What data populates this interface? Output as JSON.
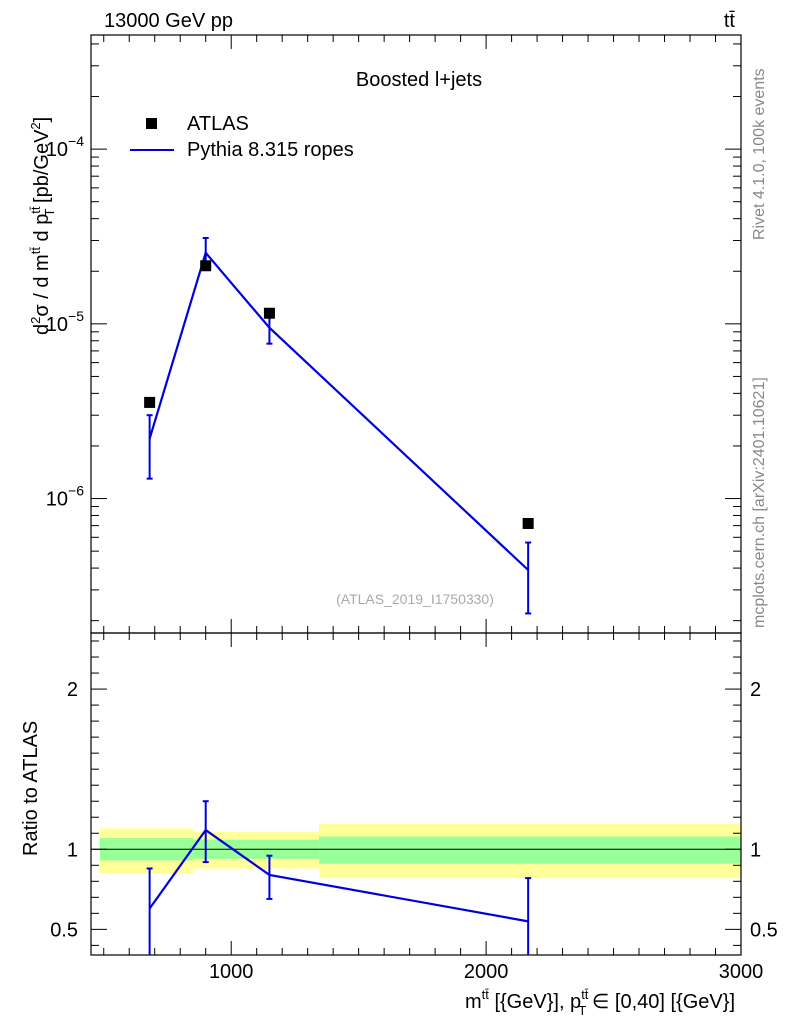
{
  "header": {
    "left": "13000 GeV pp",
    "right": "tt̄"
  },
  "side_text": {
    "rivet": "Rivet 4.1.0,  100k events",
    "mcplots": "mcplots.cern.ch [arXiv:2401.10621]"
  },
  "colors": {
    "mc": "#0000dd",
    "data": "#000000",
    "band_inner": "#99ff99",
    "band_outer": "#ffff99"
  },
  "chart_data": [
    {
      "type": "scatter",
      "title": "Boosted l+jets",
      "ylabel": "d²σ / d m^tt̄ d p_T^tt̄ [pb/GeV²]",
      "watermark": "(ATLAS_2019_I1750330)",
      "yscale": "log",
      "ylim": [
        1.7e-07,
        0.00045
      ],
      "xlim": [
        450,
        3000
      ],
      "y_ticks": [
        {
          "value": 1e-06,
          "base": "10",
          "exp": "−6"
        },
        {
          "value": 1e-05,
          "base": "10",
          "exp": "−5"
        },
        {
          "value": 0.0001,
          "base": "10",
          "exp": "−4"
        }
      ],
      "legend": {
        "position": "top-left",
        "entries": [
          "ATLAS",
          "Pythia 8.315 ropes"
        ]
      },
      "series": [
        {
          "name": "ATLAS",
          "x": [
            680,
            900,
            1150,
            2165
          ],
          "y": [
            3.55e-06,
            2.15e-05,
            1.15e-05,
            7.2e-07
          ]
        },
        {
          "name": "Pythia 8.315 ropes",
          "x": [
            680,
            900,
            1150,
            2165
          ],
          "y": [
            2.2e-06,
            2.55e-05,
            9.5e-06,
            3.9e-07
          ],
          "err_low": [
            1.3e-06,
            2.1e-05,
            7.7e-06,
            2.2e-07
          ],
          "err_high": [
            3e-06,
            3.1e-05,
            1.15e-05,
            5.6e-07
          ]
        }
      ]
    },
    {
      "type": "line",
      "ylabel": "Ratio to ATLAS",
      "xlabel": "m^tt̄ [{GeV}], p_T^tt̄ ∈ [0,40] [{GeV}]",
      "xlim": [
        450,
        3000
      ],
      "ylim": [
        0.34,
        2.35
      ],
      "x_ticks": [
        1000,
        2000,
        3000
      ],
      "y_ticks": [
        0.5,
        1,
        2
      ],
      "reference": 1,
      "bands": [
        {
          "x0": 485,
          "x1": 850,
          "inner": [
            0.93,
            1.07
          ],
          "outer": [
            0.85,
            1.13
          ]
        },
        {
          "x0": 850,
          "x1": 1345,
          "inner": [
            0.94,
            1.06
          ],
          "outer": [
            0.88,
            1.11
          ]
        },
        {
          "x0": 1345,
          "x1": 3000,
          "inner": [
            0.91,
            1.08
          ],
          "outer": [
            0.82,
            1.16
          ]
        }
      ],
      "series": [
        {
          "name": "Pythia 8.315 ropes",
          "x": [
            680,
            900,
            1150,
            2165
          ],
          "y": [
            0.63,
            1.12,
            0.84,
            0.55
          ],
          "err_low": [
            0.34,
            0.92,
            0.69,
            0.34
          ],
          "err_high": [
            0.88,
            1.3,
            0.96,
            0.82
          ]
        }
      ]
    }
  ]
}
